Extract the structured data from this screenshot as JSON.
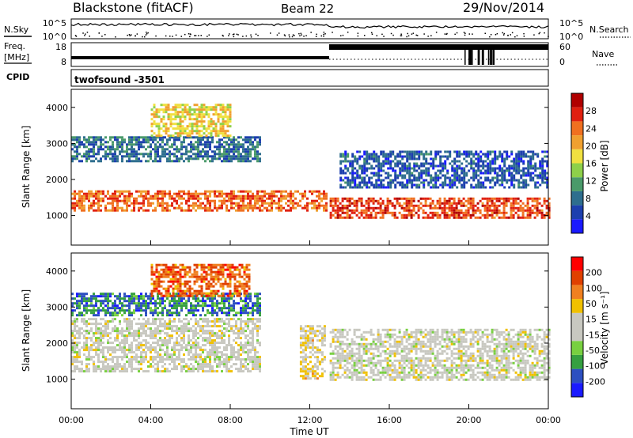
{
  "header": {
    "station": "Blackstone (fitACF)",
    "beam": "Beam 22",
    "date": "29/Nov/2014"
  },
  "panels": {
    "nsky": {
      "left_label": "N.Sky",
      "right_label": "N.Search",
      "ticks_left": [
        "10^5",
        "10^0"
      ],
      "ticks_right": [
        "10^5",
        "10^0"
      ]
    },
    "freq": {
      "left_label_1": "Freq.",
      "left_label_2": "[MHz]",
      "right_label": "Nave",
      "ticks_left": [
        "18",
        "8"
      ],
      "ticks_right": [
        "60",
        "0"
      ]
    },
    "cpid": {
      "label": "CPID",
      "program": "twofsound  -3501"
    }
  },
  "colors": {
    "power_scale": [
      "#1a1aff",
      "#1d3fae",
      "#2e6e8e",
      "#4a9a6a",
      "#8ed04a",
      "#f0e040",
      "#f0a030",
      "#f07020",
      "#e02010",
      "#b00000"
    ],
    "velocity_scale": [
      "#1a1aff",
      "#2d4fc0",
      "#35a040",
      "#78d040",
      "#c8c8c0",
      "#c8c8c0",
      "#f0c000",
      "#f08020",
      "#e04000",
      "#ff0000"
    ]
  },
  "chart_data": [
    {
      "type": "heatmap",
      "name": "power",
      "xlabel": "Time UT",
      "ylabel": "Slant Range [km]",
      "ylim": [
        180,
        4500
      ],
      "xlim": [
        0,
        24
      ],
      "x_ticks": [
        "00:00",
        "04:00",
        "08:00",
        "12:00",
        "16:00",
        "20:00",
        "00:00"
      ],
      "y_ticks": [
        1000,
        2000,
        3000,
        4000
      ],
      "colorbar": {
        "label": "Power [dB]",
        "range": [
          0,
          32
        ],
        "ticks": [
          "4",
          "8",
          "12",
          "16",
          "20",
          "24",
          "28"
        ]
      },
      "bands": [
        {
          "t_start": 0,
          "t_end": 12.8,
          "range_km": [
            1150,
            1700
          ],
          "value": 24
        },
        {
          "t_start": 13.0,
          "t_end": 24,
          "range_km": [
            950,
            1500
          ],
          "value": 26
        },
        {
          "t_start": 0,
          "t_end": 9.5,
          "range_km": [
            2500,
            3200
          ],
          "value": 8
        },
        {
          "t_start": 13.5,
          "t_end": 24,
          "range_km": [
            1800,
            2800
          ],
          "value": 6
        },
        {
          "t_start": 4,
          "t_end": 8,
          "range_km": [
            3200,
            4100
          ],
          "value": 18
        }
      ]
    },
    {
      "type": "heatmap",
      "name": "velocity",
      "xlabel": "Time UT",
      "ylabel": "Slant Range [km]",
      "ylim": [
        180,
        4500
      ],
      "xlim": [
        0,
        24
      ],
      "x_ticks": [
        "00:00",
        "04:00",
        "08:00",
        "12:00",
        "16:00",
        "20:00",
        "00:00"
      ],
      "y_ticks": [
        1000,
        2000,
        3000,
        4000
      ],
      "colorbar": {
        "label": "Velocity [m s⁻¹]",
        "range": [
          -250,
          250
        ],
        "ticks": [
          "200",
          "100",
          "50",
          "15",
          "-15",
          "-50",
          "-100",
          "-200"
        ]
      },
      "bands": [
        {
          "t_start": 0,
          "t_end": 9.5,
          "range_km": [
            1200,
            2700
          ],
          "value": 0
        },
        {
          "t_start": 13.0,
          "t_end": 24,
          "range_km": [
            1000,
            2400
          ],
          "value": 0
        },
        {
          "t_start": 0,
          "t_end": 9.5,
          "range_km": [
            2800,
            3400
          ],
          "value": -150
        },
        {
          "t_start": 4,
          "t_end": 9,
          "range_km": [
            3300,
            4200
          ],
          "value": 150
        },
        {
          "t_start": 11.5,
          "t_end": 12.8,
          "range_km": [
            1000,
            2500
          ],
          "value": 40
        }
      ]
    }
  ]
}
